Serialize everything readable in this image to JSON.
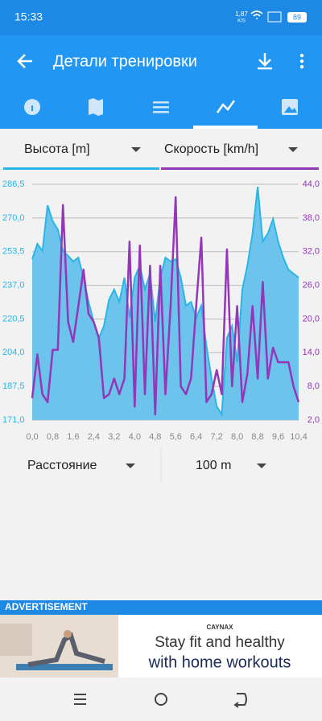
{
  "status_bar": {
    "time": "15:33",
    "speed": "1,87",
    "speed_unit": "K/S",
    "battery": "89"
  },
  "app_bar": {
    "title": "Детали тренировки"
  },
  "chart_data": {
    "type": "dual-axis-area-line",
    "x": [
      0.0,
      0.2,
      0.4,
      0.6,
      0.8,
      1.0,
      1.2,
      1.4,
      1.6,
      1.8,
      2.0,
      2.2,
      2.4,
      2.6,
      2.8,
      3.0,
      3.2,
      3.4,
      3.6,
      3.8,
      4.0,
      4.2,
      4.4,
      4.6,
      4.8,
      5.0,
      5.2,
      5.4,
      5.6,
      5.8,
      6.0,
      6.2,
      6.4,
      6.6,
      6.8,
      7.0,
      7.2,
      7.4,
      7.6,
      7.8,
      8.0,
      8.2,
      8.4,
      8.6,
      8.8,
      9.0,
      9.2,
      9.4,
      9.6,
      9.8,
      10.0,
      10.2,
      10.4
    ],
    "series": [
      {
        "name": "Высота [m]",
        "color": "#29b6e6",
        "fill": "#6cc3ec",
        "axis": "y",
        "values": [
          249.8,
          257.3,
          253.8,
          276.2,
          268.4,
          264.4,
          253.8,
          251.4,
          248.7,
          250.6,
          240.8,
          228.9,
          219.1,
          211.2,
          217.1,
          230.1,
          234.9,
          228.9,
          240.8,
          221.1,
          240.8,
          246.7,
          234.9,
          242.7,
          219.1,
          240.8,
          250.6,
          248.7,
          249.8,
          240.8,
          227.0,
          228.9,
          221.1,
          227.0,
          207.3,
          191.5,
          177.7,
          173.8,
          211.2,
          217.1,
          199.4,
          234.9,
          246.7,
          262.4,
          285.3,
          258.5,
          262.4,
          269.5,
          258.5,
          250.6,
          244.7,
          242.7,
          240.8
        ]
      },
      {
        "name": "Скорость [km/h]",
        "color": "#9436b8",
        "axis": "y2",
        "values": [
          5.9,
          13.7,
          6.6,
          5.2,
          14.5,
          14.5,
          40.3,
          19.5,
          15.9,
          22.3,
          28.8,
          20.9,
          19.5,
          16.6,
          5.9,
          6.6,
          9.4,
          6.6,
          9.4,
          33.8,
          4.4,
          33.1,
          6.6,
          29.5,
          3.0,
          29.5,
          6.6,
          22.3,
          41.7,
          8.0,
          6.6,
          9.4,
          22.3,
          34.5,
          5.2,
          6.6,
          10.9,
          6.6,
          32.4,
          8.0,
          22.3,
          5.2,
          10.2,
          22.3,
          9.4,
          26.6,
          9.4,
          14.9,
          12.3,
          12.3,
          12.3,
          8.0,
          5.2
        ]
      }
    ],
    "xlim": [
      0.0,
      10.4
    ],
    "xticks": [
      {
        "value": 0.0,
        "label": "0,0"
      },
      {
        "value": 0.8,
        "label": "0,8"
      },
      {
        "value": 1.6,
        "label": "1,6"
      },
      {
        "value": 2.4,
        "label": "2,4"
      },
      {
        "value": 3.2,
        "label": "3,2"
      },
      {
        "value": 4.0,
        "label": "4,0"
      },
      {
        "value": 4.8,
        "label": "4,8"
      },
      {
        "value": 5.6,
        "label": "5,6"
      },
      {
        "value": 6.4,
        "label": "6,4"
      },
      {
        "value": 7.2,
        "label": "7,2"
      },
      {
        "value": 8.0,
        "label": "8,0"
      },
      {
        "value": 8.8,
        "label": "8,8"
      },
      {
        "value": 9.6,
        "label": "9,6"
      },
      {
        "value": 10.4,
        "label": "10,4"
      }
    ],
    "ylim": [
      171.0,
      286.5
    ],
    "yticks": [
      {
        "value": 171.0,
        "label": "171,0"
      },
      {
        "value": 187.5,
        "label": "187,5"
      },
      {
        "value": 204.0,
        "label": "204,0"
      },
      {
        "value": 220.5,
        "label": "220,5"
      },
      {
        "value": 237.0,
        "label": "237,0"
      },
      {
        "value": 253.5,
        "label": "253,5"
      },
      {
        "value": 270.0,
        "label": "270,0"
      },
      {
        "value": 286.5,
        "label": "286,5"
      }
    ],
    "y2lim": [
      2.0,
      44.0
    ],
    "y2ticks": [
      {
        "value": 2.0,
        "label": "2,0"
      },
      {
        "value": 8.0,
        "label": "8,0"
      },
      {
        "value": 14.0,
        "label": "14,0"
      },
      {
        "value": 20.0,
        "label": "20,0"
      },
      {
        "value": 26.0,
        "label": "26,0"
      },
      {
        "value": 32.0,
        "label": "32,0"
      },
      {
        "value": 38.0,
        "label": "38,0"
      },
      {
        "value": 44.0,
        "label": "44,0"
      }
    ],
    "grid": true
  },
  "selectors": {
    "x_axis": "Расстояние",
    "interval": "100 m"
  },
  "ad": {
    "label": "ADVERTISEMENT",
    "brand": "CAYNAX",
    "line1": "Stay fit and healthy",
    "line2": "with home workouts"
  }
}
